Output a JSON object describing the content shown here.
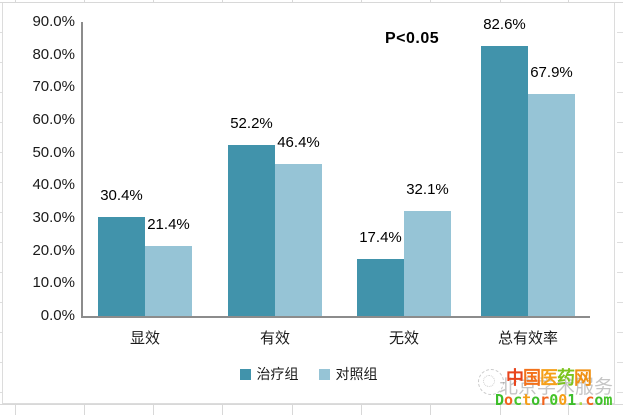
{
  "chart_data": {
    "type": "bar",
    "title": "",
    "categories": [
      "显效",
      "有效",
      "无效",
      "总有效率"
    ],
    "series": [
      {
        "name": "治疗组",
        "color": "#4193AB",
        "values": [
          30.4,
          52.2,
          17.4,
          82.6
        ],
        "labels": [
          "30.4%",
          "52.2%",
          "17.4%",
          "82.6%"
        ]
      },
      {
        "name": "对照组",
        "color": "#96C4D6",
        "values": [
          21.4,
          46.4,
          32.1,
          67.9
        ],
        "labels": [
          "21.4%",
          "46.4%",
          "32.1%",
          "67.9%"
        ]
      }
    ],
    "annotation": "P<0.05",
    "xlabel": "",
    "ylabel": "",
    "ylim": [
      0,
      90
    ],
    "ytick_labels": [
      "0.0%",
      "10.0%",
      "20.0%",
      "30.0%",
      "40.0%",
      "50.0%",
      "60.0%",
      "70.0%",
      "80.0%",
      "90.0%"
    ],
    "grid": false,
    "legend_position": "bottom-center",
    "axis_color": "#8C8C8C"
  },
  "watermark": {
    "site_name": "中国医药网",
    "site_name_chars": [
      {
        "t": "中",
        "c": "#E8441C"
      },
      {
        "t": "国",
        "c": "#F2711B"
      },
      {
        "t": "医",
        "c": "#F5A019"
      },
      {
        "t": "药",
        "c": "#7CC41E"
      },
      {
        "t": "网",
        "c": "#F09114"
      }
    ],
    "overlay_text": "北京学术服务",
    "url_text": "Doctor001.com",
    "url_chars": [
      {
        "t": "D",
        "c": "#3DBE2B"
      },
      {
        "t": "o",
        "c": "#F2641D"
      },
      {
        "t": "c",
        "c": "#46C42A"
      },
      {
        "t": "t",
        "c": "#F59E16"
      },
      {
        "t": "o",
        "c": "#3DBE2B"
      },
      {
        "t": "r",
        "c": "#F2641D"
      },
      {
        "t": "0",
        "c": "#46C42A"
      },
      {
        "t": "0",
        "c": "#F59E16"
      },
      {
        "t": "1",
        "c": "#3DBE2B"
      },
      {
        "t": ".",
        "c": "#A8D84A"
      },
      {
        "t": "c",
        "c": "#F2641D"
      },
      {
        "t": "o",
        "c": "#3DBE2B"
      },
      {
        "t": "m",
        "c": "#46C42A"
      }
    ]
  }
}
